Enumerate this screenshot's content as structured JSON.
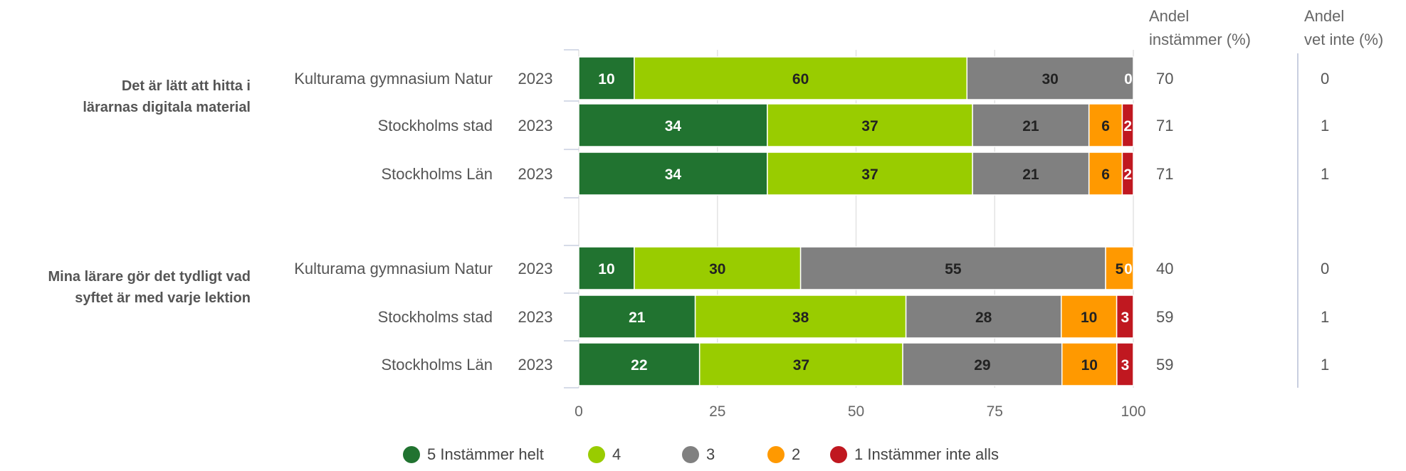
{
  "chart_data": {
    "type": "bar",
    "orientation": "horizontal",
    "stacked": true,
    "xlim": [
      0,
      100
    ],
    "x_ticks": [
      "0",
      "25",
      "50",
      "75",
      "100"
    ],
    "grid": true,
    "legend_position": "bottom",
    "column_headers": {
      "agree": [
        "Andel",
        "instämmer (%)"
      ],
      "dont_know": [
        "Andel",
        "vet inte (%)"
      ]
    },
    "series": [
      {
        "name": "5 Instämmer helt",
        "color": "#217330"
      },
      {
        "name": "4",
        "color": "#99cc00"
      },
      {
        "name": "3",
        "color": "#808080"
      },
      {
        "name": "2",
        "color": "#ff9900"
      },
      {
        "name": "1 Instämmer inte alls",
        "color": "#c01820"
      }
    ],
    "groups": [
      {
        "question": [
          "Det är lätt att hitta i",
          "lärarnas digitala material"
        ],
        "rows": [
          {
            "label": "Kulturama gymnasium Natur",
            "year": "2023",
            "values": [
              10,
              60,
              30,
              0,
              0
            ],
            "agree": "70",
            "dont_know": "0"
          },
          {
            "label": "Stockholms stad",
            "year": "2023",
            "values": [
              34,
              37,
              21,
              6,
              2
            ],
            "agree": "71",
            "dont_know": "1"
          },
          {
            "label": "Stockholms Län",
            "year": "2023",
            "values": [
              34,
              37,
              21,
              6,
              2
            ],
            "agree": "71",
            "dont_know": "1"
          }
        ]
      },
      {
        "question": [
          "Mina lärare gör det tydligt vad",
          "syftet är med varje lektion"
        ],
        "rows": [
          {
            "label": "Kulturama gymnasium Natur",
            "year": "2023",
            "values": [
              10,
              30,
              55,
              5,
              0
            ],
            "agree": "40",
            "dont_know": "0"
          },
          {
            "label": "Stockholms stad",
            "year": "2023",
            "values": [
              21,
              38,
              28,
              10,
              3
            ],
            "agree": "59",
            "dont_know": "1"
          },
          {
            "label": "Stockholms Län",
            "year": "2023",
            "values": [
              22,
              37,
              29,
              10,
              3
            ],
            "agree": "59",
            "dont_know": "1"
          }
        ]
      }
    ]
  }
}
